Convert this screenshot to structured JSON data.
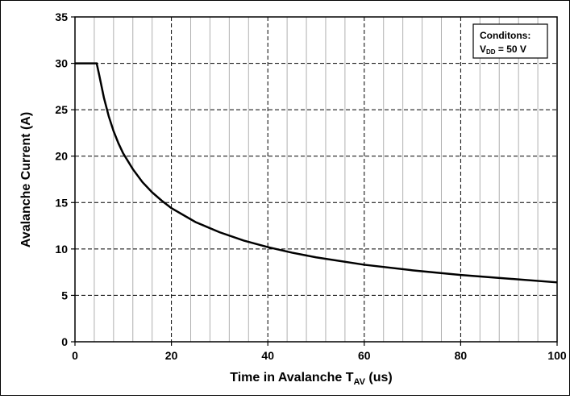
{
  "chart_data": {
    "type": "line",
    "xlabel_main": "Time in Avalanche T",
    "xlabel_sub": "AV",
    "xlabel_suffix": " (us)",
    "ylabel": "Avalanche Current (A)",
    "xlim": [
      0,
      100
    ],
    "ylim": [
      0,
      35
    ],
    "x_ticks": [
      0,
      20,
      40,
      60,
      80,
      100
    ],
    "y_ticks": [
      0,
      5,
      10,
      15,
      20,
      25,
      30,
      35
    ],
    "grid": true,
    "legend_position": "top-right",
    "annotation": {
      "line1": "Conditons:",
      "line2_main": "V",
      "line2_sub": "DD",
      "line2_rest": " = 50 V"
    },
    "series": [
      {
        "x": [
          0,
          2,
          4,
          4.5,
          5,
          6,
          7,
          8,
          9,
          10,
          12,
          14,
          16,
          18,
          20,
          25,
          30,
          35,
          40,
          45,
          50,
          60,
          70,
          80,
          90,
          100
        ],
        "values": [
          30,
          30,
          30,
          30,
          28.8,
          26.3,
          24.3,
          22.7,
          21.4,
          20.3,
          18.6,
          17.2,
          16.1,
          15.2,
          14.4,
          12.9,
          11.8,
          10.9,
          10.2,
          9.6,
          9.1,
          8.3,
          7.7,
          7.2,
          6.8,
          6.4
        ],
        "color": "#000000"
      }
    ]
  }
}
